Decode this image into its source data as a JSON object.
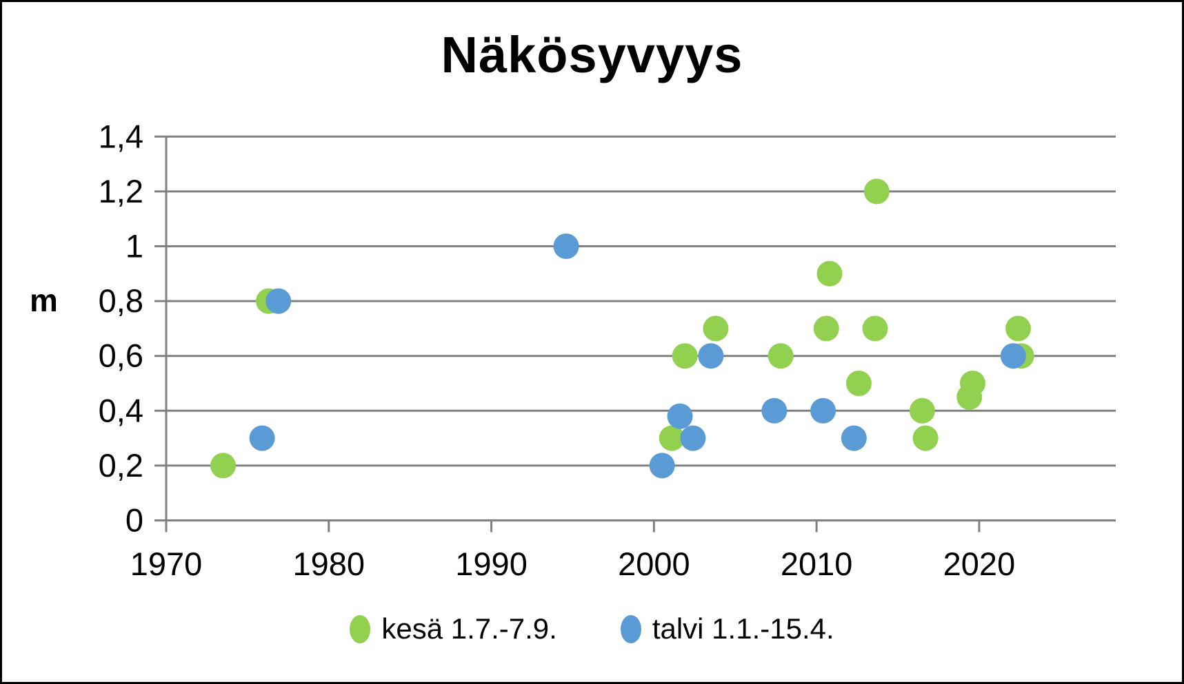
{
  "figure": {
    "title": "Näkösyvyys",
    "y_axis_unit": "m",
    "background_color": "#ffffff",
    "border_color": "#000000"
  },
  "legend": {
    "position": "bottom-center",
    "items": [
      {
        "id": "kesa",
        "label": "kesä 1.7.-7.9.",
        "color": "#92D050"
      },
      {
        "id": "talvi",
        "label": "talvi 1.1.-15.4.",
        "color": "#5B9BD5"
      }
    ]
  },
  "chart_data": {
    "type": "scatter",
    "title": "Näkösyvyys",
    "xlabel": "",
    "ylabel": "m",
    "xlim": [
      1970,
      2028.4
    ],
    "ylim": [
      0,
      1.4
    ],
    "grid": "horizontal",
    "legend_position": "bottom",
    "decimal_separator": ",",
    "colors": {
      "grid": "#808080",
      "axis": "#808080",
      "tick_text": "#000000"
    },
    "x_ticks": [
      {
        "v": 1970,
        "label": "1970"
      },
      {
        "v": 1980,
        "label": "1980"
      },
      {
        "v": 1990,
        "label": "1990"
      },
      {
        "v": 2000,
        "label": "2000"
      },
      {
        "v": 2010,
        "label": "2010"
      },
      {
        "v": 2020,
        "label": "2020"
      }
    ],
    "y_ticks": [
      {
        "v": 0,
        "label": "0"
      },
      {
        "v": 0.2,
        "label": "0,2"
      },
      {
        "v": 0.4,
        "label": "0,4"
      },
      {
        "v": 0.6,
        "label": "0,6"
      },
      {
        "v": 0.8,
        "label": "0,8"
      },
      {
        "v": 1.0,
        "label": "1"
      },
      {
        "v": 1.2,
        "label": "1,2"
      },
      {
        "v": 1.4,
        "label": "1,4"
      }
    ],
    "series": [
      {
        "id": "kesa",
        "name": "kesä 1.7.-7.9.",
        "color": "#92D050",
        "marker": "circle",
        "points": [
          [
            1973.5,
            0.2
          ],
          [
            1976.3,
            0.8
          ],
          [
            2001.1,
            0.3
          ],
          [
            2001.9,
            0.6
          ],
          [
            2003.8,
            0.7
          ],
          [
            2007.8,
            0.6
          ],
          [
            2010.6,
            0.7
          ],
          [
            2010.8,
            0.9
          ],
          [
            2012.6,
            0.5
          ],
          [
            2013.6,
            0.7
          ],
          [
            2013.7,
            1.2
          ],
          [
            2016.5,
            0.4
          ],
          [
            2016.7,
            0.3
          ],
          [
            2019.4,
            0.45
          ],
          [
            2019.6,
            0.5
          ],
          [
            2022.4,
            0.7
          ],
          [
            2022.6,
            0.6
          ]
        ]
      },
      {
        "id": "talvi",
        "name": "talvi 1.1.-15.4.",
        "color": "#5B9BD5",
        "marker": "circle",
        "points": [
          [
            1975.9,
            0.3
          ],
          [
            1976.9,
            0.8
          ],
          [
            1994.6,
            1.0
          ],
          [
            2000.5,
            0.2
          ],
          [
            2001.6,
            0.38
          ],
          [
            2002.4,
            0.3
          ],
          [
            2003.5,
            0.6
          ],
          [
            2007.4,
            0.4
          ],
          [
            2010.4,
            0.4
          ],
          [
            2012.3,
            0.3
          ],
          [
            2022.1,
            0.6
          ]
        ]
      }
    ]
  }
}
